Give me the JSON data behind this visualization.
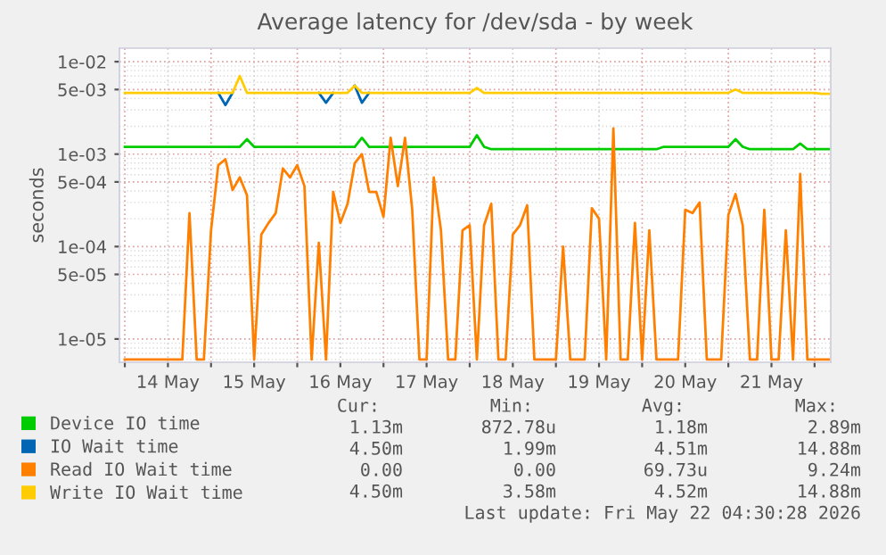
{
  "chart_data": {
    "type": "line",
    "title": "Average latency for /dev/sda - by week",
    "ylabel": "seconds",
    "log": true,
    "grid": true,
    "legend": "bottom",
    "line_style": "solid",
    "marker": "none",
    "xlim": [
      "2026-05-13T22:30",
      "2026-05-22T04:30"
    ],
    "xticks": [
      {
        "value": "2026-05-14T00:00",
        "label": null
      },
      {
        "value": "2026-05-14T12:00",
        "label": "14 May"
      },
      {
        "value": "2026-05-15T00:00",
        "label": null
      },
      {
        "value": "2026-05-15T12:00",
        "label": "15 May"
      },
      {
        "value": "2026-05-16T00:00",
        "label": null
      },
      {
        "value": "2026-05-16T12:00",
        "label": "16 May"
      },
      {
        "value": "2026-05-17T00:00",
        "label": null
      },
      {
        "value": "2026-05-17T12:00",
        "label": "17 May"
      },
      {
        "value": "2026-05-18T00:00",
        "label": null
      },
      {
        "value": "2026-05-18T12:00",
        "label": "18 May"
      },
      {
        "value": "2026-05-19T00:00",
        "label": null
      },
      {
        "value": "2026-05-19T12:00",
        "label": "19 May"
      },
      {
        "value": "2026-05-20T00:00",
        "label": null
      },
      {
        "value": "2026-05-20T12:00",
        "label": "20 May"
      },
      {
        "value": "2026-05-21T00:00",
        "label": null
      },
      {
        "value": "2026-05-21T12:00",
        "label": "21 May"
      },
      {
        "value": "2026-05-22T00:00",
        "label": null
      }
    ],
    "ylim": [
      5.6e-06,
      0.014
    ],
    "yticks": [
      {
        "value": 1e-05,
        "label": "1e-05"
      },
      {
        "value": 5e-05,
        "label": "5e-05"
      },
      {
        "value": 0.0001,
        "label": "1e-04"
      },
      {
        "value": 0.0005,
        "label": "5e-04"
      },
      {
        "value": 0.001,
        "label": "1e-03"
      },
      {
        "value": 0.005,
        "label": "5e-03"
      },
      {
        "value": 0.01,
        "label": "1e-02"
      }
    ],
    "x": [
      "2026-05-14T00:00",
      "2026-05-14T02:00",
      "2026-05-14T04:00",
      "2026-05-14T06:00",
      "2026-05-14T08:00",
      "2026-05-14T10:00",
      "2026-05-14T12:00",
      "2026-05-14T14:00",
      "2026-05-14T16:00",
      "2026-05-14T18:00",
      "2026-05-14T20:00",
      "2026-05-14T22:00",
      "2026-05-15T00:00",
      "2026-05-15T02:00",
      "2026-05-15T04:00",
      "2026-05-15T06:00",
      "2026-05-15T08:00",
      "2026-05-15T10:00",
      "2026-05-15T12:00",
      "2026-05-15T14:00",
      "2026-05-15T16:00",
      "2026-05-15T18:00",
      "2026-05-15T20:00",
      "2026-05-15T22:00",
      "2026-05-16T00:00",
      "2026-05-16T02:00",
      "2026-05-16T04:00",
      "2026-05-16T06:00",
      "2026-05-16T08:00",
      "2026-05-16T10:00",
      "2026-05-16T12:00",
      "2026-05-16T14:00",
      "2026-05-16T16:00",
      "2026-05-16T18:00",
      "2026-05-16T20:00",
      "2026-05-16T22:00",
      "2026-05-17T00:00",
      "2026-05-17T02:00",
      "2026-05-17T04:00",
      "2026-05-17T06:00",
      "2026-05-17T08:00",
      "2026-05-17T10:00",
      "2026-05-17T12:00",
      "2026-05-17T14:00",
      "2026-05-17T16:00",
      "2026-05-17T18:00",
      "2026-05-17T20:00",
      "2026-05-17T22:00",
      "2026-05-18T00:00",
      "2026-05-18T02:00",
      "2026-05-18T04:00",
      "2026-05-18T06:00",
      "2026-05-18T08:00",
      "2026-05-18T10:00",
      "2026-05-18T12:00",
      "2026-05-18T14:00",
      "2026-05-18T16:00",
      "2026-05-18T18:00",
      "2026-05-18T20:00",
      "2026-05-18T22:00",
      "2026-05-19T00:00",
      "2026-05-19T02:00",
      "2026-05-19T04:00",
      "2026-05-19T06:00",
      "2026-05-19T08:00",
      "2026-05-19T10:00",
      "2026-05-19T12:00",
      "2026-05-19T14:00",
      "2026-05-19T16:00",
      "2026-05-19T18:00",
      "2026-05-19T20:00",
      "2026-05-19T22:00",
      "2026-05-20T00:00",
      "2026-05-20T02:00",
      "2026-05-20T04:00",
      "2026-05-20T06:00",
      "2026-05-20T08:00",
      "2026-05-20T10:00",
      "2026-05-20T12:00",
      "2026-05-20T14:00",
      "2026-05-20T16:00",
      "2026-05-20T18:00",
      "2026-05-20T20:00",
      "2026-05-20T22:00",
      "2026-05-21T00:00",
      "2026-05-21T02:00",
      "2026-05-21T04:00",
      "2026-05-21T06:00",
      "2026-05-21T08:00",
      "2026-05-21T10:00",
      "2026-05-21T12:00",
      "2026-05-21T14:00",
      "2026-05-21T16:00",
      "2026-05-21T18:00",
      "2026-05-21T20:00",
      "2026-05-21T22:00",
      "2026-05-22T00:00",
      "2026-05-22T02:00",
      "2026-05-22T04:00"
    ],
    "series": [
      {
        "name": "Device IO time",
        "color": "#00cc00",
        "values": [
          0.0012,
          0.0012,
          0.0012,
          0.0012,
          0.0012,
          0.0012,
          0.0012,
          0.0012,
          0.0012,
          0.0012,
          0.0012,
          0.0012,
          0.0012,
          0.0012,
          0.0012,
          0.0012,
          0.0012,
          0.00145,
          0.0012,
          0.0012,
          0.0012,
          0.0012,
          0.0012,
          0.0012,
          0.0012,
          0.0012,
          0.0012,
          0.0012,
          0.0012,
          0.0012,
          0.0012,
          0.0012,
          0.0012,
          0.0015,
          0.0012,
          0.0012,
          0.0012,
          0.0012,
          0.0012,
          0.0012,
          0.0012,
          0.0012,
          0.0012,
          0.0012,
          0.0012,
          0.0012,
          0.0012,
          0.0012,
          0.0012,
          0.0016,
          0.0012,
          0.00113,
          0.00113,
          0.00113,
          0.00113,
          0.00113,
          0.00113,
          0.00113,
          0.00113,
          0.00113,
          0.00113,
          0.00113,
          0.00113,
          0.00113,
          0.00113,
          0.00113,
          0.00113,
          0.00113,
          0.00113,
          0.00113,
          0.00113,
          0.00113,
          0.00113,
          0.00113,
          0.00113,
          0.0012,
          0.0012,
          0.0012,
          0.0012,
          0.0012,
          0.0012,
          0.0012,
          0.0012,
          0.0012,
          0.0012,
          0.00145,
          0.0012,
          0.00113,
          0.00113,
          0.00113,
          0.00113,
          0.00113,
          0.00113,
          0.00113,
          0.0013,
          0.00113,
          0.00113,
          0.00113,
          0.00113
        ]
      },
      {
        "name": "IO Wait time",
        "color": "#0066b3",
        "values": [
          null,
          null,
          null,
          null,
          null,
          null,
          null,
          null,
          null,
          null,
          null,
          null,
          null,
          0.0046,
          0.0034,
          0.0046,
          null,
          null,
          null,
          null,
          null,
          null,
          null,
          null,
          null,
          null,
          null,
          0.0046,
          0.0036,
          0.0046,
          null,
          null,
          0.0055,
          0.0036,
          0.0046,
          null,
          null,
          null,
          null,
          null,
          null,
          null,
          null,
          null,
          null,
          null,
          null,
          null,
          null,
          null,
          null,
          null,
          null,
          null,
          null,
          null,
          null,
          null,
          null,
          null,
          null,
          null,
          null,
          null,
          null,
          null,
          null,
          null,
          null,
          null,
          null,
          null,
          null,
          null,
          null,
          null,
          null,
          null,
          null,
          null,
          null,
          null,
          null,
          null,
          null,
          null,
          null,
          null,
          null,
          null,
          null,
          null,
          null,
          null,
          null,
          null,
          null,
          null,
          null
        ]
      },
      {
        "name": "Read IO Wait time",
        "color": "#ff8000",
        "values": [
          6e-06,
          6e-06,
          6e-06,
          6e-06,
          6e-06,
          6e-06,
          6e-06,
          6e-06,
          6e-06,
          0.00023,
          6e-06,
          6e-06,
          0.00015,
          0.00076,
          0.00088,
          0.00041,
          0.00056,
          0.00036,
          6e-06,
          0.000135,
          0.00018,
          0.00023,
          0.0007,
          0.00056,
          0.00076,
          0.00045,
          6e-06,
          0.00011,
          6e-06,
          0.00039,
          0.00018,
          0.00029,
          0.0008,
          0.001,
          0.00039,
          0.00039,
          0.00021,
          0.0015,
          0.00045,
          0.0015,
          0.00025,
          6e-06,
          6e-06,
          0.00056,
          0.00015,
          6e-06,
          6e-06,
          0.00015,
          0.00017,
          6e-06,
          0.00017,
          0.00029,
          6e-06,
          6e-06,
          0.000135,
          0.00017,
          0.00028,
          6e-06,
          6e-06,
          6e-06,
          6e-06,
          0.0001,
          6e-06,
          6e-06,
          6e-06,
          0.00026,
          0.0002,
          6e-06,
          0.0019,
          6e-06,
          6e-06,
          0.00018,
          6e-06,
          0.00015,
          6e-06,
          6e-06,
          6e-06,
          6e-06,
          0.00025,
          0.00023,
          0.0003,
          6e-06,
          6e-06,
          6e-06,
          0.00022,
          0.00037,
          0.00017,
          6e-06,
          6e-06,
          0.00025,
          6e-06,
          6e-06,
          0.00015,
          6e-06,
          0.00061,
          6e-06,
          6e-06,
          6e-06,
          6e-06
        ]
      },
      {
        "name": "Write IO Wait time",
        "color": "#ffcc00",
        "values": [
          0.0046,
          0.0046,
          0.0046,
          0.0046,
          0.0046,
          0.0046,
          0.0046,
          0.0046,
          0.0046,
          0.0046,
          0.0046,
          0.0046,
          0.0046,
          0.0046,
          0.0046,
          0.0046,
          0.007,
          0.0046,
          0.0046,
          0.0046,
          0.0046,
          0.0046,
          0.0046,
          0.0046,
          0.0046,
          0.0046,
          0.0046,
          0.0046,
          0.0046,
          0.0046,
          0.0046,
          0.0046,
          0.0055,
          0.0046,
          0.0046,
          0.0046,
          0.0046,
          0.0046,
          0.0046,
          0.0046,
          0.0046,
          0.0046,
          0.0046,
          0.0046,
          0.0046,
          0.0046,
          0.0046,
          0.0046,
          0.0046,
          0.0052,
          0.0046,
          0.0046,
          0.0046,
          0.0046,
          0.0046,
          0.0046,
          0.0046,
          0.0046,
          0.0046,
          0.0046,
          0.0046,
          0.0046,
          0.0046,
          0.0046,
          0.0046,
          0.0046,
          0.0046,
          0.0046,
          0.0046,
          0.0046,
          0.0046,
          0.0046,
          0.0046,
          0.0046,
          0.0046,
          0.0046,
          0.0046,
          0.0046,
          0.0046,
          0.0046,
          0.0046,
          0.0046,
          0.0046,
          0.0046,
          0.0046,
          0.005,
          0.0046,
          0.0046,
          0.0046,
          0.0046,
          0.0046,
          0.0046,
          0.0046,
          0.0046,
          0.0046,
          0.0046,
          0.0046,
          0.0045,
          0.0045
        ]
      }
    ],
    "annotations": [
      "Cur:",
      "Min:",
      "Avg:",
      "Max:",
      "1.13m",
      "872.78u",
      "1.18m",
      "2.89m",
      "4.50m",
      "1.99m",
      "4.51m",
      "14.88m",
      "0.00",
      "0.00",
      "69.73u",
      "9.24m",
      "4.50m",
      "3.58m",
      "4.52m",
      "14.88m",
      "Last update: Fri May 22 04:30:28 2026"
    ]
  }
}
